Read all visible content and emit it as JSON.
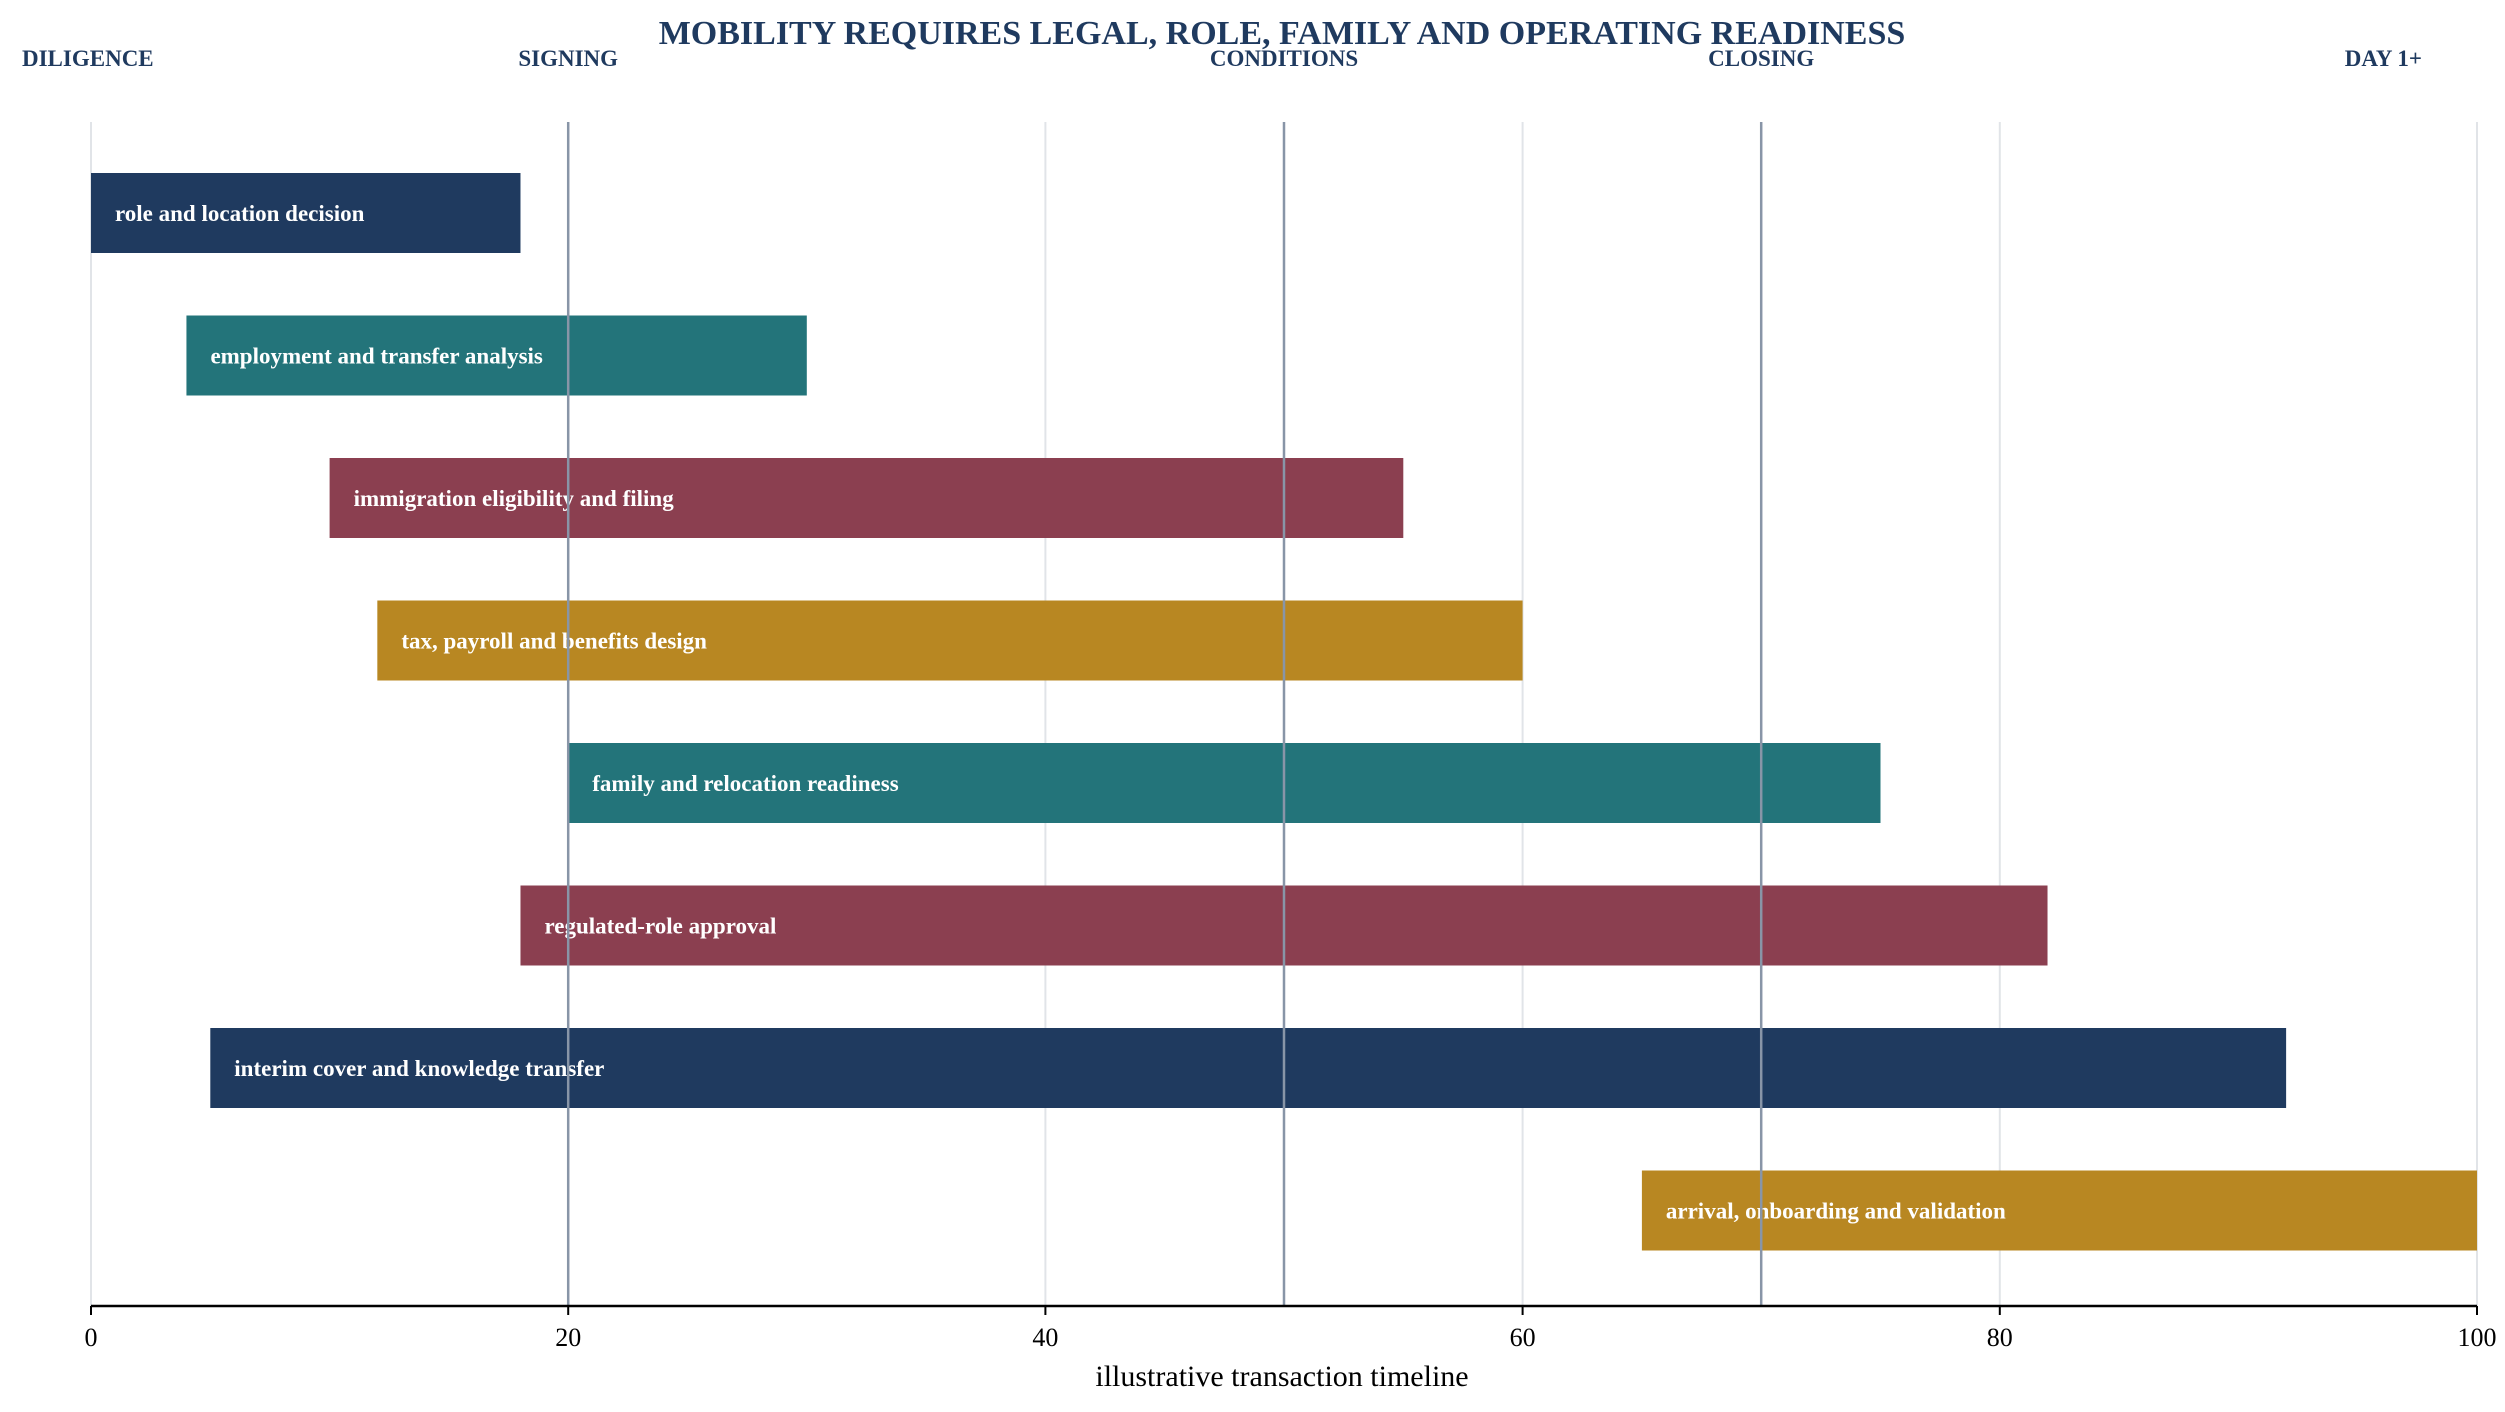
{
  "chart_data": {
    "type": "bar",
    "orientation": "horizontal-range",
    "title": "MOBILITY REQUIRES LEGAL, ROLE, FAMILY AND OPERATING READINESS",
    "xlabel": "illustrative transaction timeline",
    "ylabel": "",
    "xlim": [
      0,
      100
    ],
    "xticks": [
      0,
      20,
      40,
      60,
      80,
      100
    ],
    "grid": "vertical",
    "phases": [
      {
        "label": "DILIGENCE",
        "x": 0,
        "anchor": "start"
      },
      {
        "label": "SIGNING",
        "x": 20,
        "anchor": "middle",
        "line": true
      },
      {
        "label": "CONDITIONS",
        "x": 50,
        "anchor": "middle",
        "line": true
      },
      {
        "label": "CLOSING",
        "x": 70,
        "anchor": "middle",
        "line": true
      },
      {
        "label": "DAY 1+",
        "x": 100,
        "anchor": "end"
      }
    ],
    "tasks": [
      {
        "label": "role and location decision",
        "start": 0,
        "end": 18,
        "color": "#1f3a5f"
      },
      {
        "label": "employment and transfer analysis",
        "start": 4,
        "end": 30,
        "color": "#23747a"
      },
      {
        "label": "immigration eligibility and filing",
        "start": 10,
        "end": 55,
        "color": "#8b3f50"
      },
      {
        "label": "tax, payroll and benefits design",
        "start": 12,
        "end": 60,
        "color": "#b88722"
      },
      {
        "label": "family and relocation readiness",
        "start": 20,
        "end": 75,
        "color": "#23747a"
      },
      {
        "label": "regulated-role approval",
        "start": 18,
        "end": 82,
        "color": "#8b3f50"
      },
      {
        "label": "interim cover and knowledge transfer",
        "start": 5,
        "end": 92,
        "color": "#1f3a5f"
      },
      {
        "label": "arrival, onboarding and validation",
        "start": 65,
        "end": 100,
        "color": "#b88722"
      }
    ],
    "colors": {
      "navy": "#1f3a5f",
      "teal": "#23747a",
      "wine": "#8b3f50",
      "gold": "#b88722",
      "phase_line": "#8895a7",
      "grid": "#e1e4e8"
    }
  }
}
